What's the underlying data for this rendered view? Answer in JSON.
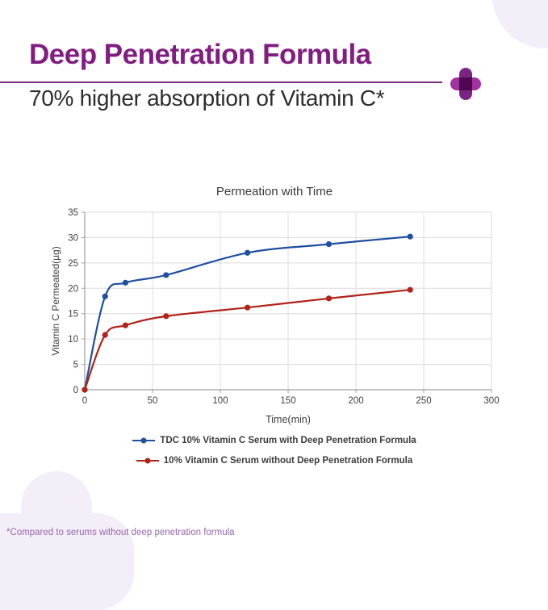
{
  "header": {
    "title": "Deep Penetration Formula",
    "subtitle": "70% higher absorption of Vitamin C*"
  },
  "footnote": {
    "text": "*Compared to serums without deep penetration formula"
  },
  "colors": {
    "title_purple": "#811d81",
    "rule_purple": "#7b2e85",
    "plus_vertical": "#7c2484",
    "plus_horizontal": "#a3319f",
    "decor_lavender": "#f3eef8",
    "footnote_purple": "#9668ae",
    "axis_text": "#404040",
    "gridline": "#dcdcdc",
    "axis_line": "#9f9f9f"
  },
  "chart_data": {
    "type": "line",
    "title": "Permeation with Time",
    "xlabel": "Time(min)",
    "ylabel": "Vitamin C Permeated(µg)",
    "x": [
      0,
      15,
      30,
      60,
      120,
      180,
      240
    ],
    "series": [
      {
        "name": "TDC 10% Vitamin C Serum with Deep Penetration Formula",
        "color": "#1f4fa0",
        "values": [
          0,
          18.4,
          21.1,
          22.6,
          27.0,
          28.7,
          30.2
        ]
      },
      {
        "name": "10% Vitamin C Serum without Deep Penetration Formula",
        "color": "#b02318",
        "values": [
          0,
          10.8,
          12.7,
          14.5,
          16.2,
          18.0,
          19.7
        ]
      }
    ],
    "xlim": [
      0,
      300
    ],
    "ylim": [
      0,
      35
    ],
    "x_ticks": [
      0,
      50,
      100,
      150,
      200,
      250,
      300
    ],
    "y_ticks": [
      0,
      5,
      10,
      15,
      20,
      25,
      30,
      35
    ],
    "grid": true,
    "smooth_lines": true,
    "legend_position": "bottom"
  }
}
